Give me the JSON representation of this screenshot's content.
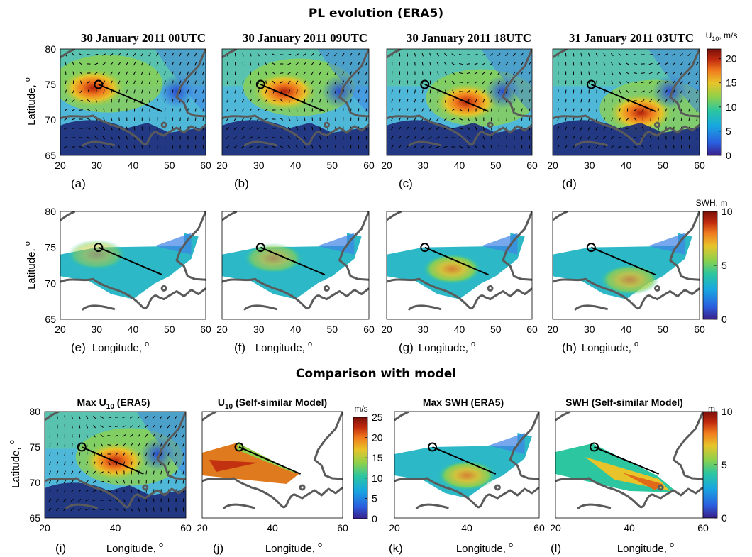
{
  "figure": {
    "title_top": "PL evolution (ERA5)",
    "title_bottom": "Comparison with model"
  },
  "colors": {
    "land": "#1d2a7a",
    "coast": "#5a5a5a",
    "track": "#000000",
    "colormap": [
      "#3a1f8a",
      "#2a5fe0",
      "#18a8e0",
      "#2cc6a0",
      "#8fd14a",
      "#e8c42a",
      "#f07a1e",
      "#c02a0e",
      "#7a0f0a"
    ]
  },
  "chart_data": [
    {
      "type": "heatmap",
      "panel": "(a)",
      "title": "30 January 2011 00UTC",
      "variable": "U10 wind speed (m/s)",
      "xlim": [
        20,
        60
      ],
      "ylim": [
        65,
        80
      ],
      "xticks": [
        20,
        30,
        40,
        50,
        60
      ],
      "yticks": [
        65,
        70,
        75,
        80
      ],
      "ylabel": "Latitude, o",
      "vectors": true,
      "max_center": [
        27,
        74.5
      ],
      "max_value": 17
    },
    {
      "type": "heatmap",
      "panel": "(b)",
      "title": "30 January 2011 09UTC",
      "variable": "U10 wind speed (m/s)",
      "xlim": [
        20,
        60
      ],
      "ylim": [
        65,
        80
      ],
      "xticks": [
        20,
        30,
        40,
        50,
        60
      ],
      "vectors": true,
      "max_center": [
        35,
        74
      ],
      "max_value": 18
    },
    {
      "type": "heatmap",
      "panel": "(c)",
      "title": "30 January 2011 18UTC",
      "variable": "U10 wind speed (m/s)",
      "xlim": [
        20,
        60
      ],
      "ylim": [
        65,
        80
      ],
      "xticks": [
        20,
        30,
        40,
        50,
        60
      ],
      "vectors": true,
      "max_center": [
        40,
        72.5
      ],
      "max_value": 20
    },
    {
      "type": "heatmap",
      "panel": "(d)",
      "title": "31 January 2011 03UTC",
      "variable": "U10 wind speed (m/s)",
      "xlim": [
        20,
        60
      ],
      "ylim": [
        65,
        80
      ],
      "xticks": [
        20,
        30,
        40,
        50,
        60
      ],
      "vectors": true,
      "max_center": [
        42,
        71
      ],
      "max_value": 18
    },
    {
      "type": "heatmap",
      "panel": "(e)",
      "variable": "SWH (m)",
      "xlim": [
        20,
        60
      ],
      "ylim": [
        65,
        80
      ],
      "xticks": [
        20,
        30,
        40,
        50,
        60
      ],
      "yticks": [
        65,
        70,
        75,
        80
      ],
      "ylabel": "Latitude, o",
      "xlabel": "Longitude, o",
      "max_center": [
        30,
        74
      ],
      "max_value": 4
    },
    {
      "type": "heatmap",
      "panel": "(f)",
      "variable": "SWH (m)",
      "xlim": [
        20,
        60
      ],
      "ylim": [
        65,
        80
      ],
      "xticks": [
        20,
        30,
        40,
        50,
        60
      ],
      "xlabel": "Longitude, o",
      "max_center": [
        34,
        73.5
      ],
      "max_value": 5
    },
    {
      "type": "heatmap",
      "panel": "(g)",
      "variable": "SWH (m)",
      "xlim": [
        20,
        60
      ],
      "ylim": [
        65,
        80
      ],
      "xticks": [
        20,
        30,
        40,
        50,
        60
      ],
      "xlabel": "Longitude, o",
      "max_center": [
        38,
        72
      ],
      "max_value": 7
    },
    {
      "type": "heatmap",
      "panel": "(h)",
      "variable": "SWH (m)",
      "xlim": [
        20,
        60
      ],
      "ylim": [
        65,
        80
      ],
      "xticks": [
        20,
        30,
        40,
        50,
        60
      ],
      "xlabel": "Longitude, o",
      "max_center": [
        41,
        70.5
      ],
      "max_value": 6
    },
    {
      "type": "heatmap",
      "panel": "(i)",
      "title": "Max U10 (ERA5)",
      "variable": "U10 (m/s)",
      "xlim": [
        20,
        60
      ],
      "ylim": [
        65,
        80
      ],
      "xticks": [
        20,
        40,
        60
      ],
      "yticks": [
        65,
        70,
        75,
        80
      ],
      "ylabel": "Latitude, o",
      "xlabel": "Longitude, o",
      "max_center": [
        38,
        73
      ],
      "max_value": 18
    },
    {
      "type": "heatmap",
      "panel": "(j)",
      "title": "U10 (Self-similar Model)",
      "variable": "U10 (m/s)",
      "xlim": [
        20,
        60
      ],
      "ylim": [
        65,
        80
      ],
      "xticks": [
        20,
        40,
        60
      ],
      "xlabel": "Longitude, o",
      "max_center": [
        32,
        72
      ],
      "max_value": 20
    },
    {
      "type": "heatmap",
      "panel": "(k)",
      "title": "Max SWH (ERA5)",
      "variable": "SWH (m)",
      "xlim": [
        20,
        60
      ],
      "ylim": [
        65,
        80
      ],
      "xticks": [
        20,
        40,
        60
      ],
      "xlabel": "Longitude, o",
      "max_center": [
        40,
        71
      ],
      "max_value": 7
    },
    {
      "type": "heatmap",
      "panel": "(l)",
      "title": "SWH (Self-similar Model)",
      "variable": "SWH (m)",
      "xlim": [
        20,
        60
      ],
      "ylim": [
        65,
        80
      ],
      "xticks": [
        20,
        40,
        60
      ],
      "xlabel": "Longitude, o",
      "max_center": [
        43,
        69.5
      ],
      "max_value": 8
    },
    {
      "type": "colorbar",
      "label": "U10, m/s",
      "ticks": [
        0,
        5,
        10,
        15,
        20
      ],
      "range": [
        0,
        22
      ]
    },
    {
      "type": "colorbar",
      "label": "SWH, m",
      "ticks": [
        0,
        5,
        10
      ],
      "range": [
        0,
        10
      ]
    },
    {
      "type": "colorbar",
      "label": "m/s",
      "ticks": [
        0,
        5,
        10,
        15,
        20,
        25
      ],
      "range": [
        0,
        25
      ]
    },
    {
      "type": "colorbar",
      "label": "m",
      "ticks": [
        0,
        5,
        10
      ],
      "range": [
        0,
        10
      ]
    }
  ],
  "track": {
    "start": [
      30.5,
      75
    ],
    "end": [
      48,
      71.2
    ]
  },
  "text": {
    "ylabel": "Latitude, ",
    "ylabel_sup": "o",
    "xlabel": "Longitude, ",
    "xlabel_sup": "o",
    "cb1_label_main": "U",
    "cb1_label_sub": "10",
    "cb1_label_rest": ", m/s",
    "cb2_label": "SWH, m",
    "cb3_label": "m/s",
    "cb4_label": "m",
    "title_i_a": "Max U",
    "title_i_sub": "10",
    "title_i_b": " (ERA5)",
    "title_j_a": "U",
    "title_j_sub": "10",
    "title_j_b": " (Self-similar Model)",
    "title_k": "Max SWH (ERA5)",
    "title_l": "SWH (Self-similar Model)"
  }
}
